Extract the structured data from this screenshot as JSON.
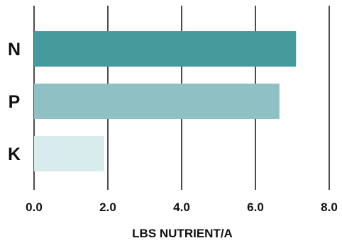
{
  "chart_data": {
    "type": "bar",
    "orientation": "horizontal",
    "categories": [
      "N",
      "P",
      "K"
    ],
    "values": [
      7.1,
      6.65,
      1.9
    ],
    "xlabel": "LBS NUTRIENT/A",
    "ylabel": "",
    "xlim": [
      0,
      8
    ],
    "ticks": [
      "0.0",
      "2.0",
      "4.0",
      "6.0",
      "8.0"
    ],
    "tick_values": [
      0,
      2,
      4,
      6,
      8
    ],
    "grid": "vertical",
    "colors": [
      "#459a9b",
      "#8fc0c3",
      "#d9eced"
    ]
  }
}
